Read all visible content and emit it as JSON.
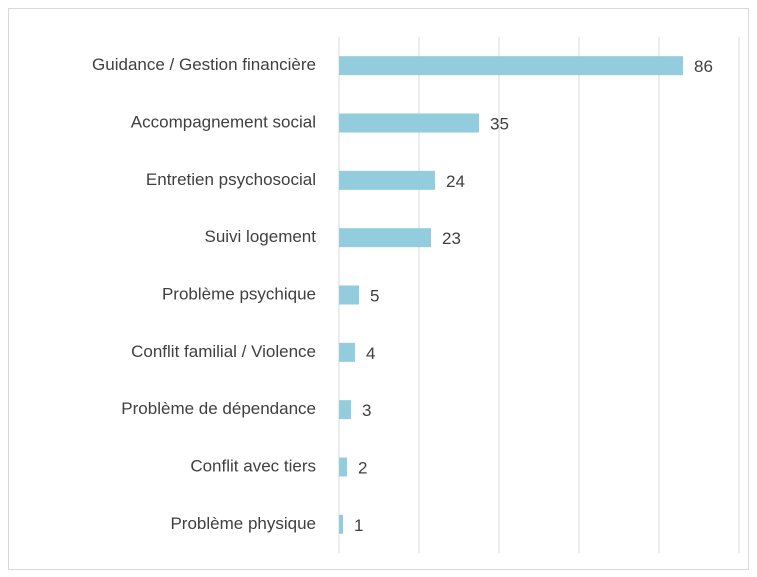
{
  "chart_data": {
    "type": "hbar",
    "categories": [
      "Guidance / Gestion financière",
      "Accompagnement social",
      "Entretien psychosocial",
      "Suivi logement",
      "Problème psychique",
      "Conflit familial / Violence",
      "Problème de dépendance",
      "Conflit avec tiers",
      "Problème physique"
    ],
    "values": [
      86,
      35,
      24,
      23,
      5,
      4,
      3,
      2,
      1
    ],
    "color": "#93cddd",
    "xlim": [
      0,
      100
    ],
    "xticks": [
      0,
      20,
      40,
      60,
      80,
      100
    ],
    "grid": true
  }
}
